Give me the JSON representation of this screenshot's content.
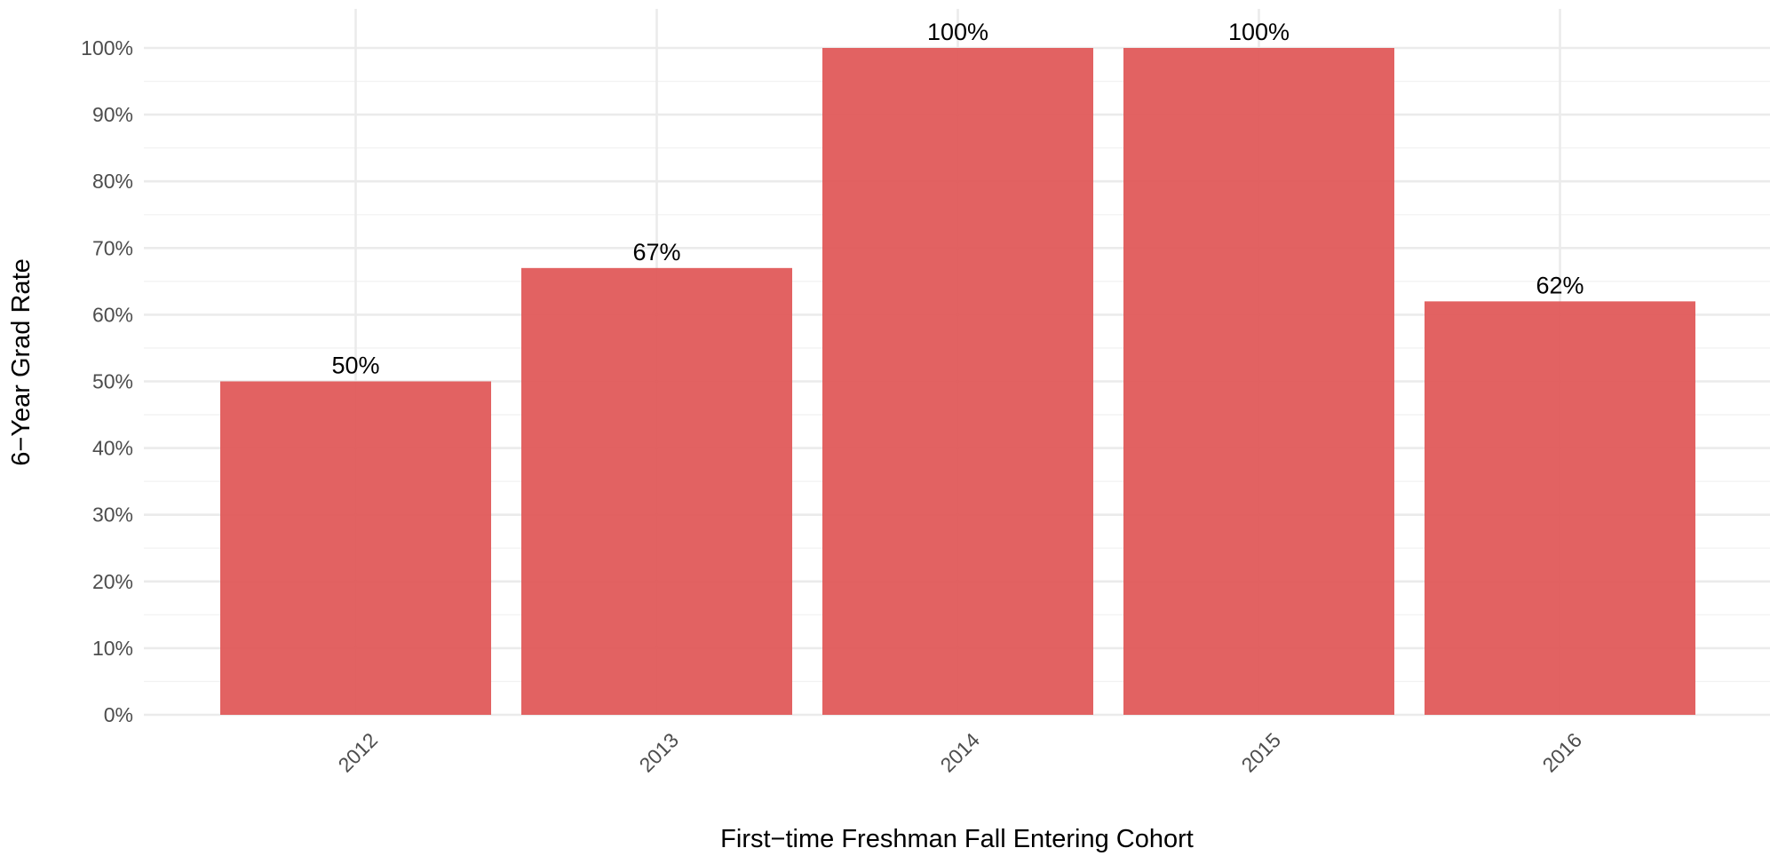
{
  "chart_data": {
    "type": "bar",
    "title": "",
    "xlabel": "First−time Freshman Fall Entering Cohort",
    "ylabel": "6−Year Grad Rate",
    "categories": [
      "2012",
      "2013",
      "2014",
      "2015",
      "2016"
    ],
    "values": [
      50,
      67,
      100,
      100,
      62
    ],
    "data_labels": [
      "50%",
      "67%",
      "100%",
      "100%",
      "62%"
    ],
    "ylim": [
      0,
      100
    ],
    "y_ticks": [
      0,
      10,
      20,
      30,
      40,
      50,
      60,
      70,
      80,
      90,
      100
    ],
    "y_tick_labels": [
      "0%",
      "10%",
      "20%",
      "30%",
      "40%",
      "50%",
      "60%",
      "70%",
      "80%",
      "90%",
      "100%"
    ],
    "x_tick_rotation_deg": 45,
    "grid": true,
    "legend": "none",
    "colors": {
      "bar": "#e05a5a",
      "grid": "#ebebeb",
      "background": "#ffffff"
    }
  }
}
